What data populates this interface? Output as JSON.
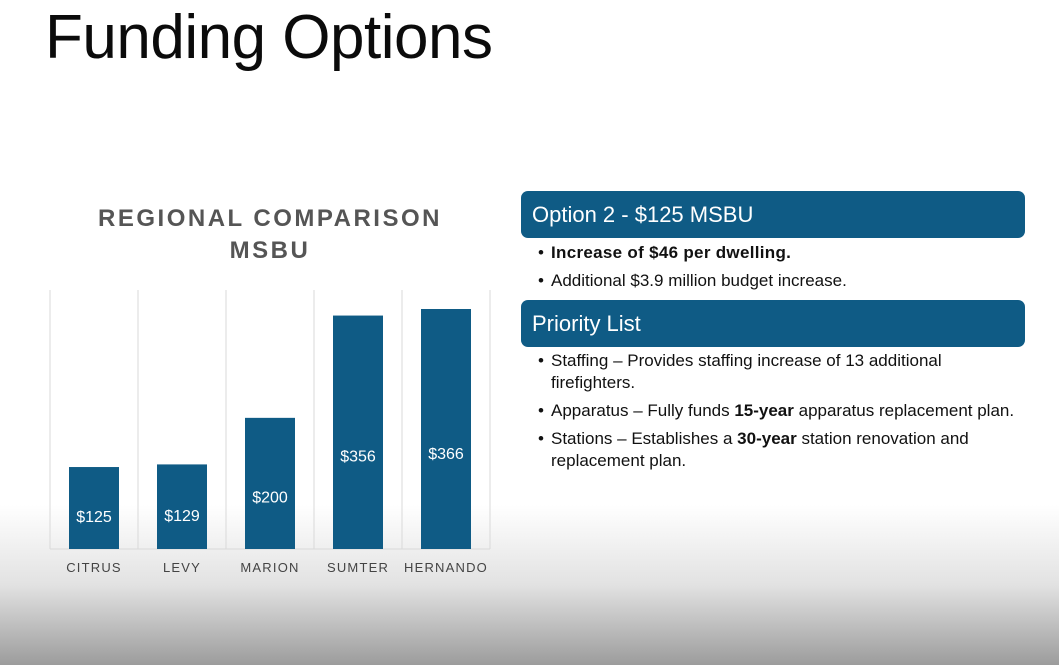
{
  "slide": {
    "title": "Funding Options"
  },
  "chart_data": {
    "type": "bar",
    "title_lines": [
      "REGIONAL COMPARISON",
      "MSBU"
    ],
    "categories": [
      "CITRUS",
      "LEVY",
      "MARION",
      "SUMTER",
      "HERNANDO"
    ],
    "values": [
      125,
      129,
      200,
      356,
      366
    ],
    "value_labels": [
      "$125",
      "$129",
      "$200",
      "$356",
      "$366"
    ],
    "bar_color": "#0f5b85",
    "grid": true,
    "legend": "none"
  },
  "option_box": {
    "heading": "Option 2 - $125 MSBU",
    "bullets": [
      {
        "text": "Increase of $46 per dwelling."
      },
      {
        "text": "Additional $3.9 million budget increase."
      }
    ]
  },
  "priority_box": {
    "heading": "Priority List",
    "bullets": [
      {
        "pre": "Staffing – Provides staffing increase of 13 additional firefighters.",
        "bold": "",
        "post": ""
      },
      {
        "pre": "Apparatus – Fully funds ",
        "bold": "15-year",
        "post": " apparatus replacement plan."
      },
      {
        "pre": "Stations – Establishes a ",
        "bold": "30-year",
        "post": "  station renovation and replacement plan."
      }
    ]
  },
  "colors": {
    "accent": "#0f5b85",
    "text": "#111111",
    "chart_title": "#555555"
  }
}
